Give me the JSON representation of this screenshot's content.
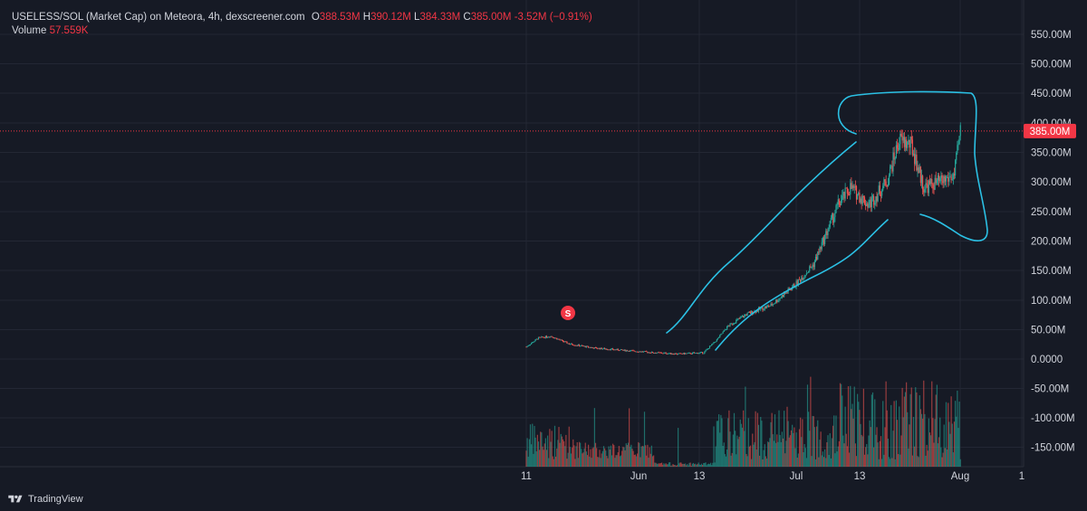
{
  "legend": {
    "symbol": "USELESS/SOL (Market Cap) on Meteora, 4h, dexscreener.com",
    "o_label": "O",
    "o_value": "388.53M",
    "h_label": "H",
    "h_value": "390.12M",
    "l_label": "L",
    "l_value": "384.33M",
    "c_label": "C",
    "c_value": "385.00M",
    "change": "-3.52M (−0.91%)",
    "volume_label": "Volume",
    "volume_value": "57.559K"
  },
  "footer": {
    "brand": "TradingView",
    "logo_icon": "tradingview-logo-icon"
  },
  "marker": {
    "label": "S",
    "color": "#f23645"
  },
  "price_tag": {
    "label": "385.00M",
    "color": "#f23645"
  },
  "colors": {
    "up": "#26a69a",
    "down": "#ef5350",
    "drawing": "#2bc0e4",
    "grid": "#232734",
    "text": "#d1d4dc"
  },
  "chart_data": {
    "type": "candlestick",
    "y_axis_ticks": [
      "550.00M",
      "500.00M",
      "450.00M",
      "400.00M",
      "350.00M",
      "300.00M",
      "250.00M",
      "200.00M",
      "150.00M",
      "100.00M",
      "50.00M",
      "0.0000",
      "-50.00M",
      "-100.00M",
      "-150.00M"
    ],
    "x_axis_ticks": [
      "11",
      "Jun",
      "13",
      "Jul",
      "13",
      "Aug",
      "1"
    ],
    "ylim_millions": [
      -180,
      580
    ],
    "current_price": "385.00M",
    "series": [
      {
        "date": "May 11",
        "close_m": 20
      },
      {
        "date": "May 13",
        "close_m": 35
      },
      {
        "date": "May 15",
        "close_m": 38
      },
      {
        "date": "May 18",
        "close_m": 25
      },
      {
        "date": "May 22",
        "close_m": 18
      },
      {
        "date": "May 27",
        "close_m": 14
      },
      {
        "date": "Jun 1",
        "close_m": 10
      },
      {
        "date": "Jun 5",
        "close_m": 8
      },
      {
        "date": "Jun 9",
        "close_m": 10
      },
      {
        "date": "Jun 11",
        "close_m": 30
      },
      {
        "date": "Jun 13",
        "close_m": 55
      },
      {
        "date": "Jun 16",
        "close_m": 75
      },
      {
        "date": "Jun 20",
        "close_m": 90
      },
      {
        "date": "Jun 24",
        "close_m": 125
      },
      {
        "date": "Jun 27",
        "close_m": 160
      },
      {
        "date": "Jun 29",
        "close_m": 210
      },
      {
        "date": "Jul 1",
        "close_m": 260
      },
      {
        "date": "Jul 3",
        "close_m": 290
      },
      {
        "date": "Jul 6",
        "close_m": 260
      },
      {
        "date": "Jul 9",
        "close_m": 300
      },
      {
        "date": "Jul 11",
        "close_m": 370
      },
      {
        "date": "Jul 13",
        "close_m": 360
      },
      {
        "date": "Jul 15",
        "close_m": 290
      },
      {
        "date": "Jul 18",
        "close_m": 300
      },
      {
        "date": "Jul 20",
        "close_m": 310
      },
      {
        "date": "Jul 21",
        "close_m": 385
      }
    ]
  }
}
